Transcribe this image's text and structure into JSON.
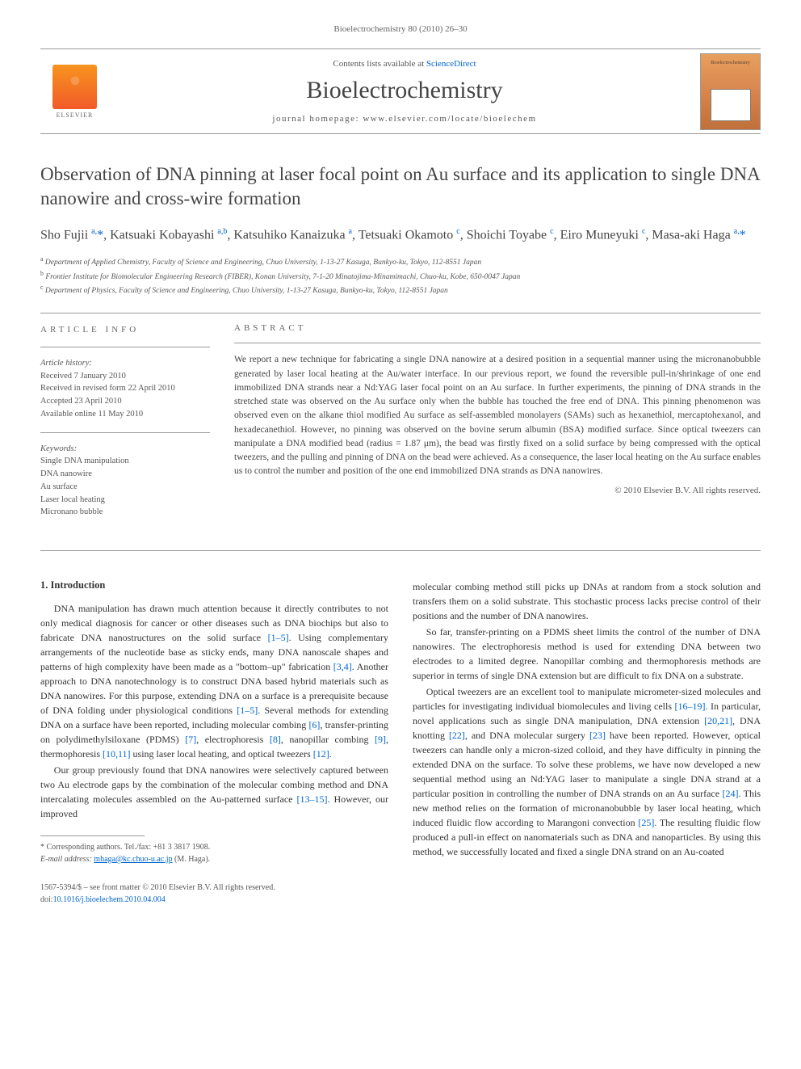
{
  "header_line": "Bioelectrochemistry 80 (2010) 26–30",
  "masthead": {
    "contents_prefix": "Contents lists available at ",
    "contents_link": "ScienceDirect",
    "journal": "Bioelectrochemistry",
    "homepage": "journal homepage: www.elsevier.com/locate/bioelechem",
    "publisher": "ELSEVIER",
    "cover_title": "Bioelectrochemistry"
  },
  "title": "Observation of DNA pinning at laser focal point on Au surface and its application to single DNA nanowire and cross-wire formation",
  "authors_html": "Sho Fujii <sup>a,</sup><span class='corr'>*</span>, Katsuaki Kobayashi <sup>a,b</sup>, Katsuhiko Kanaizuka <sup>a</sup>, Tetsuaki Okamoto <sup>c</sup>, Shoichi Toyabe <sup>c</sup>, Eiro Muneyuki <sup>c</sup>, Masa-aki Haga <sup>a,</sup><span class='corr'>*</span>",
  "affiliations": [
    {
      "sup": "a",
      "text": "Department of Applied Chemistry, Faculty of Science and Engineering, Chuo University, 1-13-27 Kasuga, Bunkyo-ku, Tokyo, 112-8551 Japan"
    },
    {
      "sup": "b",
      "text": "Frontier Institute for Biomolecular Engineering Research (FIBER), Konan University, 7-1-20 Minatojima-Minamimachi, Chuo-ku, Kobe, 650-0047 Japan"
    },
    {
      "sup": "c",
      "text": "Department of Physics, Faculty of Science and Engineering, Chuo University, 1-13-27 Kasuga, Bunkyo-ku, Tokyo, 112-8551 Japan"
    }
  ],
  "article_info": {
    "heading": "article info",
    "history_label": "Article history:",
    "history": [
      "Received 7 January 2010",
      "Received in revised form 22 April 2010",
      "Accepted 23 April 2010",
      "Available online 11 May 2010"
    ],
    "keywords_label": "Keywords:",
    "keywords": [
      "Single DNA manipulation",
      "DNA nanowire",
      "Au surface",
      "Laser local heating",
      "Micronano bubble"
    ]
  },
  "abstract": {
    "heading": "abstract",
    "text": "We report a new technique for fabricating a single DNA nanowire at a desired position in a sequential manner using the micronanobubble generated by laser local heating at the Au/water interface. In our previous report, we found the reversible pull-in/shrinkage of one end immobilized DNA strands near a Nd:YAG laser focal point on an Au surface. In further experiments, the pinning of DNA strands in the stretched state was observed on the Au surface only when the bubble has touched the free end of DNA. This pinning phenomenon was observed even on the alkane thiol modified Au surface as self-assembled monolayers (SAMs) such as hexanethiol, mercaptohexanol, and hexadecanethiol. However, no pinning was observed on the bovine serum albumin (BSA) modified surface. Since optical tweezers can manipulate a DNA modified bead (radius = 1.87 μm), the bead was firstly fixed on a solid surface by being compressed with the optical tweezers, and the pulling and pinning of DNA on the bead were achieved. As a consequence, the laser local heating on the Au surface enables us to control the number and position of the one end immobilized DNA strands as DNA nanowires.",
    "copyright": "© 2010 Elsevier B.V. All rights reserved."
  },
  "body": {
    "section_head": "1. Introduction",
    "left": [
      "DNA manipulation has drawn much attention because it directly contributes to not only medical diagnosis for cancer or other diseases such as DNA biochips but also to fabricate DNA nanostructures on the solid surface <span class='ref'>[1–5]</span>. Using complementary arrangements of the nucleotide base as sticky ends, many DNA nanoscale shapes and patterns of high complexity have been made as a \"bottom–up\" fabrication <span class='ref'>[3,4]</span>. Another approach to DNA nanotechnology is to construct DNA based hybrid materials such as DNA nanowires. For this purpose, extending DNA on a surface is a prerequisite because of DNA folding under physiological conditions <span class='ref'>[1–5]</span>. Several methods for extending DNA on a surface have been reported, including molecular combing <span class='ref'>[6]</span>, transfer-printing on polydimethylsiloxane (PDMS) <span class='ref'>[7]</span>, electrophoresis <span class='ref'>[8]</span>, nanopillar combing <span class='ref'>[9]</span>, thermophoresis <span class='ref'>[10,11]</span> using laser local heating, and optical tweezers <span class='ref'>[12]</span>.",
      "Our group previously found that DNA nanowires were selectively captured between two Au electrode gaps by the combination of the molecular combing method and DNA intercalating molecules assembled on the Au-patterned surface <span class='ref'>[13–15]</span>. However, our improved"
    ],
    "right": [
      "molecular combing method still picks up DNAs at random from a stock solution and transfers them on a solid substrate. This stochastic process lacks precise control of their positions and the number of DNA nanowires.",
      "So far, transfer-printing on a PDMS sheet limits the control of the number of DNA nanowires. The electrophoresis method is used for extending DNA between two electrodes to a limited degree. Nanopillar combing and thermophoresis methods are superior in terms of single DNA extension but are difficult to fix DNA on a substrate.",
      "Optical tweezers are an excellent tool to manipulate micrometer-sized molecules and particles for investigating individual biomolecules and living cells <span class='ref'>[16–19]</span>. In particular, novel applications such as single DNA manipulation, DNA extension <span class='ref'>[20,21]</span>, DNA knotting <span class='ref'>[22]</span>, and DNA molecular surgery <span class='ref'>[23]</span> have been reported. However, optical tweezers can handle only a micron-sized colloid, and they have difficulty in pinning the extended DNA on the surface. To solve these problems, we have now developed a new sequential method using an Nd:YAG laser to manipulate a single DNA strand at a particular position in controlling the number of DNA strands on an Au surface <span class='ref'>[24]</span>. This new method relies on the formation of micronanobubble by laser local heating, which induced fluidic flow according to Marangoni convection <span class='ref'>[25]</span>. The resulting fluidic flow produced a pull-in effect on nanomaterials such as DNA and nanoparticles. By using this method, we successfully located and fixed a single DNA strand on an Au-coated"
    ]
  },
  "footnote": {
    "corr": "* Corresponding authors. Tel./fax: +81 3 3817 1908.",
    "email_label": "E-mail address: ",
    "email": "mhaga@kc.chuo-u.ac.jp",
    "email_who": " (M. Haga)."
  },
  "footer": {
    "front_matter": "1567-5394/$ – see front matter © 2010 Elsevier B.V. All rights reserved.",
    "doi_prefix": "doi:",
    "doi": "10.1016/j.bioelechem.2010.04.004"
  },
  "colors": {
    "link": "#0066cc",
    "text": "#333333",
    "muted": "#666666",
    "rule": "#999999",
    "elsevier_orange1": "#f7941e",
    "elsevier_orange2": "#f15a29",
    "cover_bg1": "#e8a05e",
    "cover_bg2": "#c0703a"
  }
}
